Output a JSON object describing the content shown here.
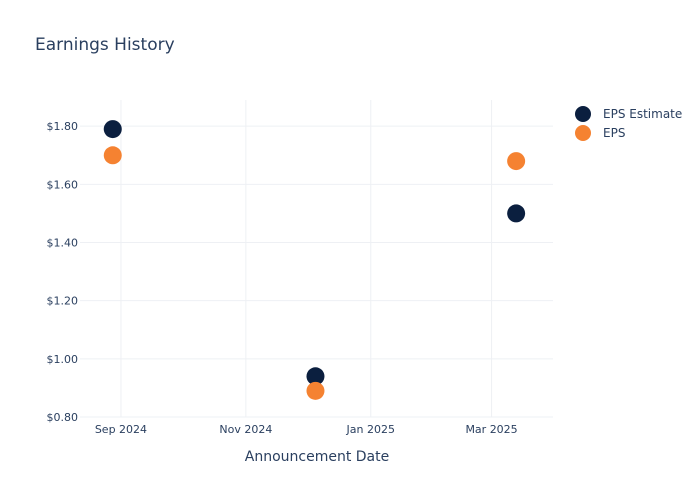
{
  "chart_data": {
    "type": "scatter",
    "title": "Earnings History",
    "xlabel": "Announcement Date",
    "ylabel": "",
    "x_ticks": [
      "Sep 2024",
      "Nov 2024",
      "Jan 2025",
      "Mar 2025"
    ],
    "y_ticks": [
      "$0.80",
      "$1.00",
      "$1.20",
      "$1.40",
      "$1.60",
      "$1.80"
    ],
    "ylim": [
      0.8,
      1.89
    ],
    "xlim": [
      "2024-08-12",
      "2025-03-31"
    ],
    "grid": true,
    "legend_position": "top-right",
    "x": [
      "2024-08-28",
      "2024-12-05",
      "2025-03-13"
    ],
    "series": [
      {
        "name": "EPS Estimate",
        "color": "#0b1f3f",
        "values": [
          1.79,
          0.94,
          1.5
        ]
      },
      {
        "name": "EPS",
        "color": "#f58231",
        "values": [
          1.7,
          0.89,
          1.68
        ]
      }
    ]
  }
}
